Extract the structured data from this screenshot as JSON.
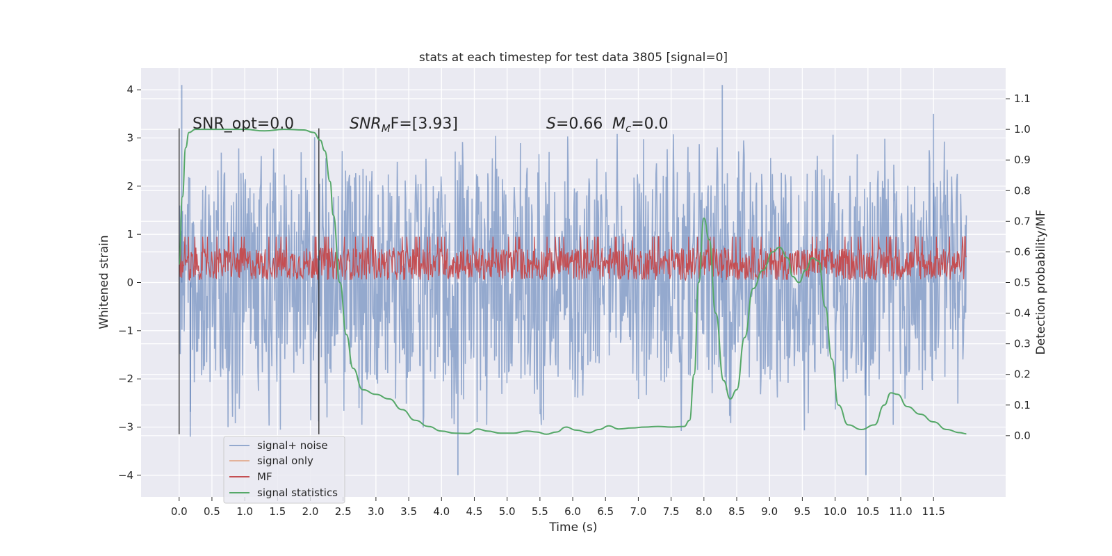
{
  "chart_data": {
    "type": "line",
    "title": "stats at each timestep for test data 3805 [signal=0]",
    "xlabel": "Time (s)",
    "ylabel_left": "Whitened strain",
    "ylabel_right": "Detection probability/MF",
    "xlim": [
      -0.58,
      12.6
    ],
    "ylim_left": [
      -4.45,
      4.45
    ],
    "ylim_right": [
      -0.2,
      1.2
    ],
    "x_ticks": [
      "0.0",
      "0.5",
      "1.0",
      "1.5",
      "2.0",
      "2.5",
      "3.0",
      "3.5",
      "4.0",
      "4.5",
      "5.0",
      "5.5",
      "6.0",
      "6.5",
      "7.0",
      "7.5",
      "8.0",
      "8.5",
      "9.0",
      "9.5",
      "10.0",
      "10.5",
      "11.0",
      "11.5"
    ],
    "y_ticks_left": [
      "4",
      "3",
      "2",
      "1",
      "0",
      "−1",
      "−2",
      "−3",
      "−4"
    ],
    "y_ticks_right": [
      "1.1",
      "1.0",
      "0.9",
      "0.8",
      "0.7",
      "0.6",
      "0.5",
      "0.4",
      "0.3",
      "0.2",
      "0.1",
      "0.0"
    ],
    "grid": true,
    "background": "#eaeaf2",
    "legend_position": "lower-left",
    "annotations": {
      "snr_opt": "SNR_opt=0.0",
      "snr_mf_sym": "SNR",
      "snr_mf_sub": "M",
      "snr_mf_rest": "F=[3.93]",
      "s_sym": "S",
      "s_rest": "=0.66",
      "mc_sym": "M",
      "mc_sub": "c",
      "mc_rest": "=0.0"
    },
    "vertical_markers": [
      0.0,
      2.13
    ],
    "series": [
      {
        "name": "signal+ noise",
        "color": "#4c72b0",
        "style": "dense noise, approx ±2 range with spikes to ±4",
        "x_range": [
          0.0,
          12.0
        ],
        "typical_range": [
          -2.1,
          2.3
        ],
        "spikes": [
          [
            0.04,
            4.1
          ],
          [
            8.28,
            4.1
          ],
          [
            0.17,
            -3.2
          ],
          [
            4.25,
            -4.0
          ],
          [
            10.47,
            -4.0
          ],
          [
            11.5,
            3.5
          ]
        ]
      },
      {
        "name": "signal only",
        "color": "#dd8452",
        "values": []
      },
      {
        "name": "MF",
        "color": "#c44e52",
        "style": "dense noise band",
        "x_range": [
          0.0,
          12.0
        ],
        "band": [
          0.05,
          0.95
        ]
      },
      {
        "name": "signal statistics",
        "color": "#55a868",
        "axis": "right",
        "points": [
          [
            0.0,
            0.56
          ],
          [
            0.05,
            0.78
          ],
          [
            0.1,
            0.94
          ],
          [
            0.15,
            0.99
          ],
          [
            0.25,
            1.0
          ],
          [
            0.5,
            1.0
          ],
          [
            1.0,
            1.0
          ],
          [
            1.3,
            0.995
          ],
          [
            1.6,
            1.0
          ],
          [
            1.9,
            0.998
          ],
          [
            2.05,
            0.99
          ],
          [
            2.15,
            0.965
          ],
          [
            2.22,
            0.93
          ],
          [
            2.3,
            0.83
          ],
          [
            2.35,
            0.72
          ],
          [
            2.45,
            0.5
          ],
          [
            2.55,
            0.33
          ],
          [
            2.65,
            0.22
          ],
          [
            2.8,
            0.15
          ],
          [
            3.0,
            0.135
          ],
          [
            3.2,
            0.12
          ],
          [
            3.4,
            0.085
          ],
          [
            3.6,
            0.05
          ],
          [
            3.8,
            0.03
          ],
          [
            4.0,
            0.015
          ],
          [
            4.2,
            0.008
          ],
          [
            4.4,
            0.007
          ],
          [
            4.55,
            0.022
          ],
          [
            4.7,
            0.015
          ],
          [
            4.9,
            0.008
          ],
          [
            5.1,
            0.008
          ],
          [
            5.3,
            0.015
          ],
          [
            5.45,
            0.012
          ],
          [
            5.6,
            0.005
          ],
          [
            5.75,
            0.012
          ],
          [
            5.9,
            0.028
          ],
          [
            6.05,
            0.018
          ],
          [
            6.25,
            0.01
          ],
          [
            6.4,
            0.02
          ],
          [
            6.55,
            0.032
          ],
          [
            6.7,
            0.022
          ],
          [
            6.9,
            0.025
          ],
          [
            7.1,
            0.028
          ],
          [
            7.3,
            0.03
          ],
          [
            7.5,
            0.028
          ],
          [
            7.7,
            0.03
          ],
          [
            7.78,
            0.05
          ],
          [
            7.85,
            0.2
          ],
          [
            7.92,
            0.5
          ],
          [
            8.0,
            0.71
          ],
          [
            8.08,
            0.64
          ],
          [
            8.18,
            0.4
          ],
          [
            8.3,
            0.18
          ],
          [
            8.4,
            0.12
          ],
          [
            8.5,
            0.15
          ],
          [
            8.62,
            0.32
          ],
          [
            8.75,
            0.48
          ],
          [
            8.9,
            0.54
          ],
          [
            9.05,
            0.6
          ],
          [
            9.15,
            0.615
          ],
          [
            9.28,
            0.58
          ],
          [
            9.35,
            0.52
          ],
          [
            9.45,
            0.5
          ],
          [
            9.55,
            0.54
          ],
          [
            9.65,
            0.58
          ],
          [
            9.75,
            0.57
          ],
          [
            9.85,
            0.42
          ],
          [
            9.95,
            0.25
          ],
          [
            10.05,
            0.1
          ],
          [
            10.2,
            0.035
          ],
          [
            10.4,
            0.02
          ],
          [
            10.6,
            0.035
          ],
          [
            10.75,
            0.1
          ],
          [
            10.85,
            0.14
          ],
          [
            10.95,
            0.135
          ],
          [
            11.1,
            0.095
          ],
          [
            11.3,
            0.07
          ],
          [
            11.5,
            0.045
          ],
          [
            11.7,
            0.02
          ],
          [
            11.9,
            0.01
          ],
          [
            12.0,
            0.006
          ]
        ]
      }
    ]
  }
}
